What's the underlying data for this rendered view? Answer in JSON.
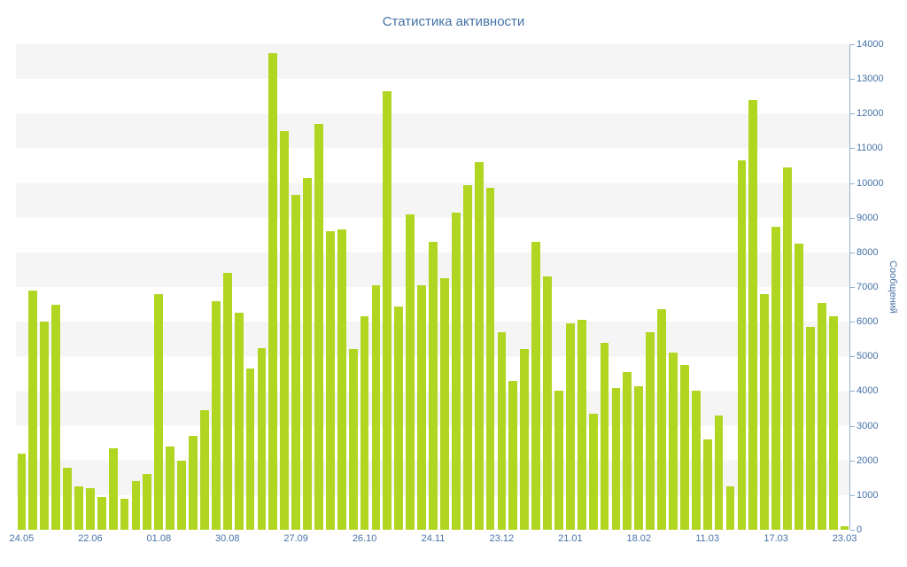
{
  "chart_data": {
    "type": "bar",
    "title": "Статистика активности",
    "xlabel": "",
    "ylabel": "Сообщений",
    "ylim": [
      0,
      14000
    ],
    "y_tick_step": 1000,
    "grid": "horizontal-bands",
    "legend": "off",
    "bar_color": "#b0d622",
    "band_color": "#f5f5f5",
    "axis_color": "#94b1d0",
    "text_color": "#4572a7",
    "x_tick_every": 6,
    "x_tick_labels": [
      "24.05",
      "22.06",
      "01.08",
      "30.08",
      "27.09",
      "26.10",
      "24.11",
      "23.12",
      "21.01",
      "18.02",
      "11.03",
      "17.03",
      "23.03"
    ],
    "values": [
      2200,
      6900,
      6000,
      6500,
      1800,
      1250,
      1200,
      950,
      2350,
      900,
      1400,
      1600,
      6800,
      2400,
      2000,
      2700,
      3450,
      6600,
      7400,
      6250,
      4650,
      5250,
      13750,
      11500,
      9650,
      10150,
      11700,
      8600,
      8650,
      5200,
      6150,
      7050,
      12650,
      6450,
      9100,
      7050,
      8300,
      7250,
      9150,
      9950,
      10600,
      9850,
      5700,
      4300,
      5200,
      8300,
      7300,
      4000,
      5950,
      6050,
      3350,
      5400,
      4100,
      4550,
      4150,
      5700,
      6350,
      5100,
      4750,
      4000,
      2600,
      3300,
      1250,
      10650,
      12400,
      6800,
      8750,
      10450,
      8250,
      5850,
      6550,
      6150,
      100
    ]
  }
}
